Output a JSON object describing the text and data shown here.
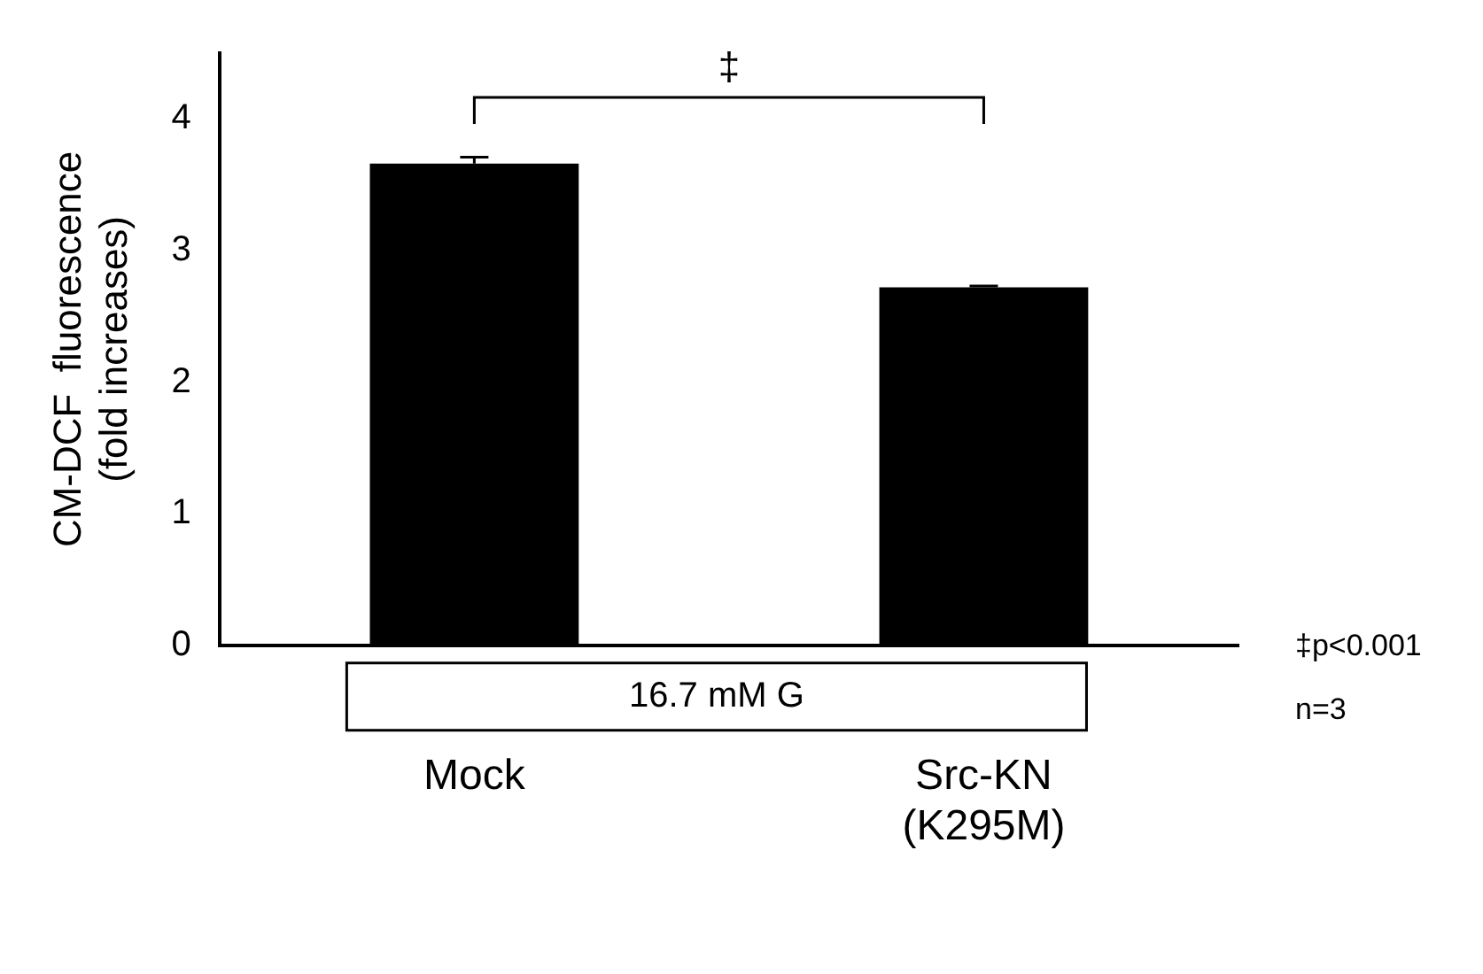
{
  "chart_data": {
    "type": "bar",
    "categories": [
      "Mock",
      "Src-KN\n(K295M)"
    ],
    "values": [
      3.66,
      2.72
    ],
    "errors": [
      0.05,
      0.01
    ],
    "color": "#000000",
    "ylabel": "CM-DCF  fluorescence\n(fold increases)",
    "ylim": [
      0,
      4.5
    ],
    "yticks": [
      0,
      1,
      2,
      3,
      4
    ],
    "grid": false,
    "legend": false,
    "annotations": [
      "‡",
      "16.7 mM G",
      "‡p<0.001",
      "n=3"
    ]
  }
}
